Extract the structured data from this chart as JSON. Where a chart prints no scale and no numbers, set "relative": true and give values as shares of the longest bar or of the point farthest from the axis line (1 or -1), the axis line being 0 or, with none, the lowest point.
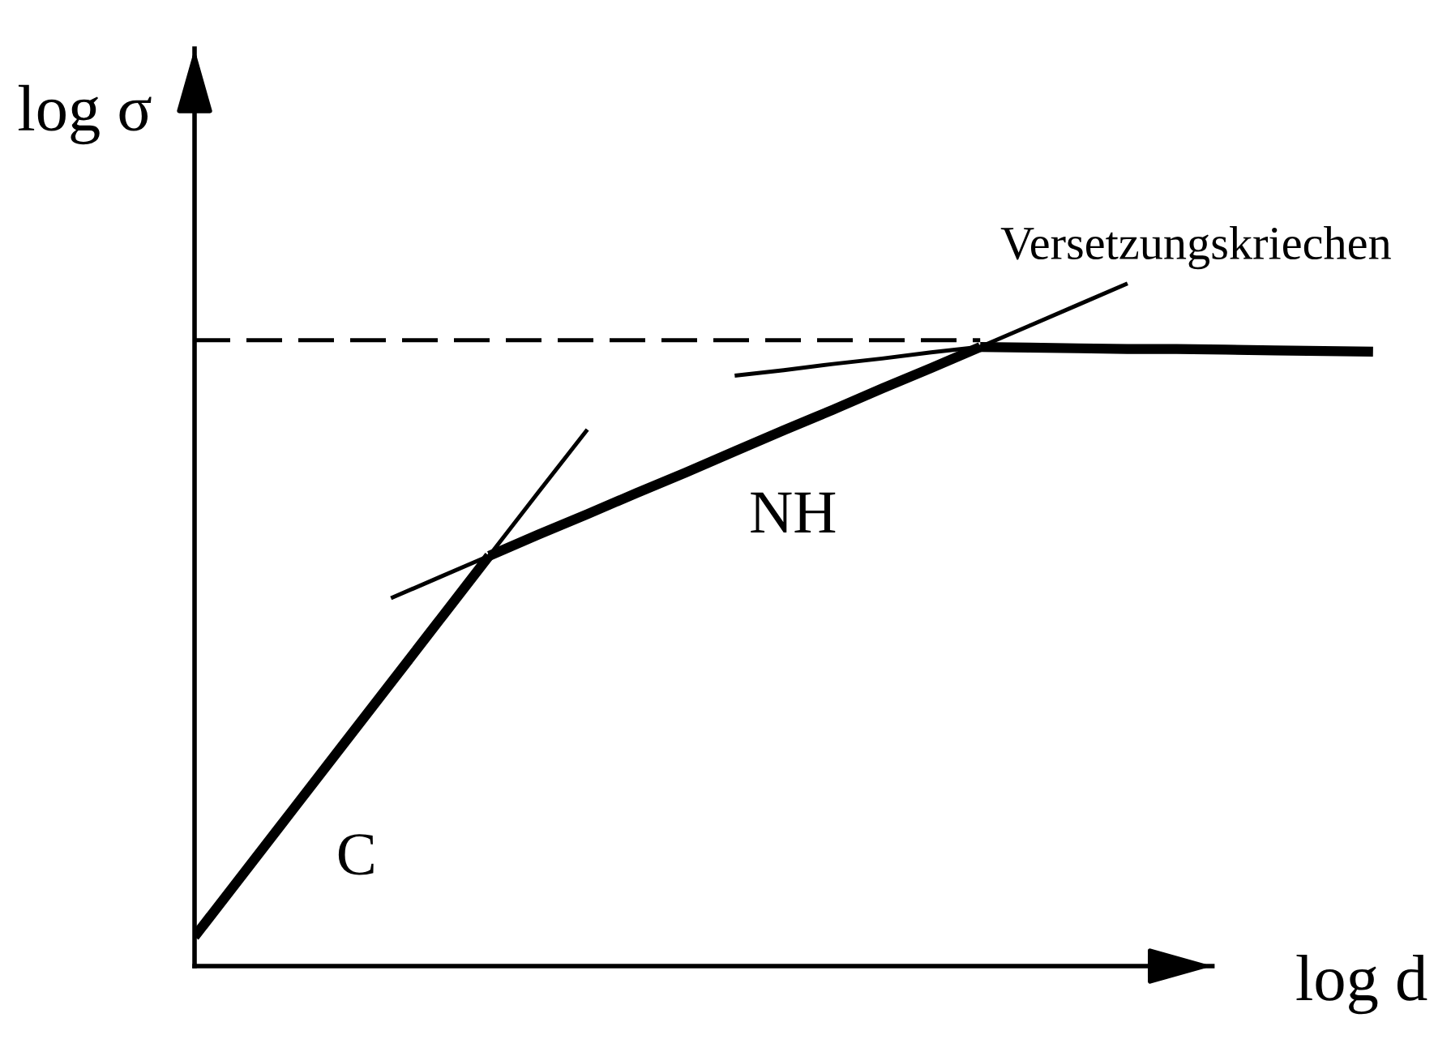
{
  "chart_data": {
    "type": "line",
    "xlabel": "log d",
    "ylabel": "log σ",
    "relative": true,
    "categories": [
      null,
      null,
      null,
      null,
      null,
      null,
      null,
      null,
      null,
      null,
      null,
      null,
      null,
      null,
      null,
      null,
      null,
      null,
      null,
      null,
      null,
      null,
      null,
      null,
      null
    ],
    "series": [
      {
        "color": "#000000",
        "line_style": "dashed",
        "values": [
          0.917,
          0.917,
          0.917,
          0.917,
          0.917,
          0.917,
          0.917,
          0.917,
          0.917,
          0.917,
          0.917,
          0.917,
          0.917,
          0.917,
          0.917,
          0.917,
          0.917,
          null,
          null,
          null,
          null,
          null,
          null,
          null,
          null
        ]
      },
      {
        "color": "#000000",
        "values": [
          null,
          null,
          null,
          null,
          null,
          null,
          0.601,
          0.694,
          0.786,
          null,
          null,
          null,
          null,
          null,
          null,
          null,
          null,
          null,
          null,
          null,
          null,
          null,
          null,
          null,
          null
        ]
      },
      {
        "color": "#000000",
        "values": [
          null,
          null,
          null,
          null,
          0.539,
          0.57,
          0.601,
          null,
          null,
          null,
          null,
          null,
          null,
          null,
          null,
          null,
          null,
          null,
          null,
          null,
          null,
          null,
          null,
          null,
          null
        ]
      },
      {
        "color": "#000000",
        "values": [
          null,
          null,
          null,
          null,
          null,
          null,
          null,
          null,
          null,
          null,
          null,
          null,
          null,
          null,
          null,
          null,
          0.907,
          0.938,
          0.969,
          1.0,
          null,
          null,
          null,
          null,
          null
        ]
      },
      {
        "color": "#000000",
        "values": [
          null,
          null,
          null,
          null,
          null,
          null,
          null,
          null,
          null,
          null,
          null,
          0.865,
          0.873,
          0.882,
          0.89,
          0.899,
          0.907,
          null,
          null,
          null,
          null,
          null,
          null,
          null,
          null
        ]
      },
      {
        "name": "C",
        "color": "#000000",
        "values": [
          0.043,
          0.136,
          0.229,
          0.322,
          0.415,
          0.508,
          0.601,
          null,
          null,
          null,
          null,
          null,
          null,
          null,
          null,
          null,
          null,
          null,
          null,
          null,
          null,
          null,
          null,
          null,
          null
        ]
      },
      {
        "name": "NH",
        "color": "#000000",
        "values": [
          null,
          null,
          null,
          null,
          null,
          null,
          0.601,
          0.632,
          0.662,
          0.693,
          0.723,
          0.754,
          0.785,
          0.815,
          0.846,
          0.876,
          0.907,
          null,
          null,
          null,
          null,
          null,
          null,
          null,
          null
        ]
      },
      {
        "name": "Versetzungskriechen",
        "color": "#000000",
        "values": [
          null,
          null,
          null,
          null,
          null,
          null,
          null,
          null,
          null,
          null,
          null,
          null,
          null,
          null,
          null,
          null,
          0.907,
          0.906,
          0.905,
          0.904,
          0.904,
          0.903,
          0.902,
          0.901,
          0.9
        ]
      }
    ]
  }
}
